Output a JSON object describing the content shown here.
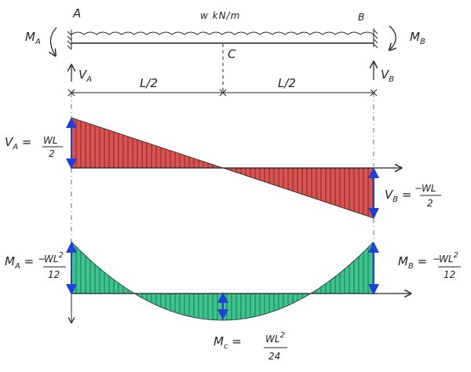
{
  "beam": {
    "support_a": "A",
    "support_b": "B",
    "load": "w kN/m",
    "midpoint": "C",
    "moment_a": "M",
    "moment_a_sub": "A",
    "moment_b": "M",
    "moment_b_sub": "B",
    "reaction_a": "V",
    "reaction_a_sub": "A",
    "reaction_b": "V",
    "reaction_b_sub": "B",
    "span_left": "L/2",
    "span_right": "L/2"
  },
  "shear_diagram": {
    "fill_color": "#d9534f",
    "va_lhs": "V",
    "va_lhs_sub": "A",
    "va_num": "WL",
    "va_den": "2",
    "vb_lhs": "V",
    "vb_lhs_sub": "B",
    "vb_sign": "−",
    "vb_num": "WL",
    "vb_den": "2"
  },
  "moment_diagram": {
    "fill_color": "#3cc48d",
    "ma_lhs": "M",
    "ma_lhs_sub": "A",
    "ma_sign": "−",
    "ma_num": "WL",
    "ma_num_sup": "2",
    "ma_den": "12",
    "mb_lhs": "M",
    "mb_lhs_sub": "B",
    "mb_sign": "−",
    "mb_num": "WL",
    "mb_num_sup": "2",
    "mb_den": "12",
    "mc_lhs": "M",
    "mc_lhs_sub": "c",
    "mc_num": "WL",
    "mc_num_sup": "2",
    "mc_den": "24"
  },
  "colors": {
    "arrow_blue": "#1f3fd6",
    "ink": "#222222"
  }
}
